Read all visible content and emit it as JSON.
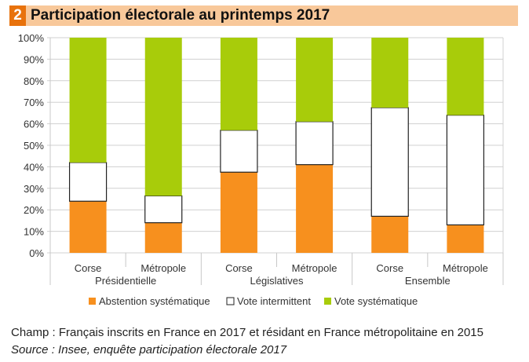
{
  "title_number": "2",
  "title": "Participation électorale au printemps 2017",
  "chart_data": {
    "type": "bar",
    "stacked": true,
    "percent": true,
    "groups": [
      "Présidentielle",
      "Législatives",
      "Ensemble"
    ],
    "categories": [
      "Corse",
      "Métropole",
      "Corse",
      "Métropole",
      "Corse",
      "Métropole"
    ],
    "category_groups": [
      0,
      0,
      1,
      1,
      2,
      2
    ],
    "series": [
      {
        "name": "Abstention systématique",
        "color": "#f7901e",
        "values": [
          24,
          14,
          37.5,
          41,
          17,
          13
        ]
      },
      {
        "name": "Vote intermittent",
        "color": "#ffffff",
        "values": [
          18,
          12.5,
          19.5,
          20,
          50.5,
          51
        ]
      },
      {
        "name": "Vote systématique",
        "color": "#a8cc0a",
        "values": [
          58,
          73.5,
          43,
          39,
          32.5,
          36
        ]
      }
    ],
    "yticks": [
      "0%",
      "10%",
      "20%",
      "30%",
      "40%",
      "50%",
      "60%",
      "70%",
      "80%",
      "90%",
      "100%"
    ],
    "ylim": [
      0,
      100
    ],
    "grid": true,
    "legend": "bottom"
  },
  "footnotes": {
    "champ": "Champ : Français inscrits en France en 2017 et résidant en France métropolitaine en 2015",
    "source": "Source : Insee, enquête participation électorale 2017"
  }
}
